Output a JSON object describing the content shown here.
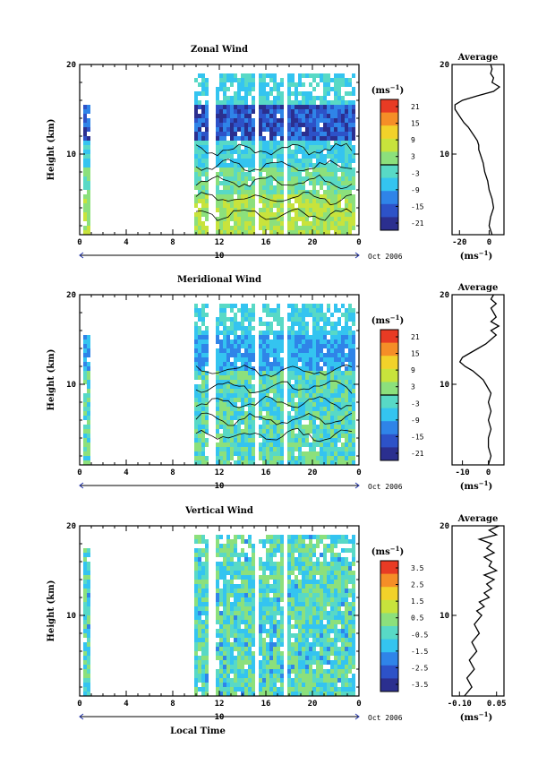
{
  "chart_data": [
    {
      "type": "heatmap",
      "title": "Zonal Wind",
      "ylabel": "Height (km)",
      "xlabel": "",
      "x_ticks": [
        "0",
        "4",
        "8",
        "12",
        "16",
        "20",
        "0"
      ],
      "y_ticks": [
        "10",
        "20"
      ],
      "ylim": [
        1,
        20
      ],
      "date_axis": {
        "mid_label": "10",
        "end_label": "Oct 2006"
      },
      "colorbar": {
        "unit": "(ms",
        "unit_exp": "−1",
        "unit_close": ")",
        "ticks": [
          "21",
          "15",
          "9",
          "3",
          "-3",
          "-9",
          "-15",
          "-21"
        ]
      },
      "profile": {
        "title": "Average",
        "x_ticks": [
          "-20",
          "0"
        ],
        "xlim": [
          -25,
          10
        ],
        "unit": "(ms",
        "unit_exp": "−1",
        "unit_close": ")",
        "y_ticks": [
          "10",
          "20"
        ],
        "heights": [
          1.0,
          2.0,
          3.0,
          4.0,
          5.0,
          6.0,
          7.0,
          8.0,
          9.0,
          10.0,
          10.5,
          11.0,
          11.5,
          12.0,
          12.5,
          13.0,
          13.5,
          14.0,
          14.5,
          15.0,
          15.5,
          16.0,
          16.5,
          17.0,
          17.5,
          18.0,
          18.5,
          19.0,
          19.5,
          20.0
        ],
        "values": [
          2,
          0,
          1,
          3,
          2,
          0,
          -1,
          -3,
          -4,
          -6,
          -7,
          -7,
          -8,
          -10,
          -12,
          -14,
          -17,
          -19,
          -21,
          -23,
          -23,
          -18,
          -8,
          3,
          7,
          2,
          3,
          1,
          2,
          1
        ]
      }
    },
    {
      "type": "heatmap",
      "title": "Meridional Wind",
      "ylabel": "Height (km)",
      "xlabel": "",
      "x_ticks": [
        "0",
        "4",
        "8",
        "12",
        "16",
        "20",
        "0"
      ],
      "y_ticks": [
        "10",
        "20"
      ],
      "ylim": [
        1,
        20
      ],
      "date_axis": {
        "mid_label": "10",
        "end_label": "Oct 2006"
      },
      "colorbar": {
        "unit": "(ms",
        "unit_exp": "−1",
        "unit_close": ")",
        "ticks": [
          "21",
          "15",
          "9",
          "3",
          "-3",
          "-9",
          "-15",
          "-21"
        ]
      },
      "profile": {
        "title": "Average",
        "x_ticks": [
          "-10",
          "0"
        ],
        "xlim": [
          -14,
          6
        ],
        "unit": "(ms",
        "unit_exp": "−1",
        "unit_close": ")",
        "y_ticks": [
          "10",
          "20"
        ],
        "heights": [
          1.0,
          2.0,
          3.0,
          4.0,
          5.0,
          6.0,
          7.0,
          8.0,
          9.0,
          10.0,
          10.5,
          11.0,
          11.5,
          12.0,
          12.5,
          13.0,
          13.5,
          14.0,
          14.5,
          15.0,
          15.5,
          16.0,
          16.5,
          17.0,
          17.5,
          18.0,
          18.5,
          19.0,
          19.5,
          20.0
        ],
        "values": [
          0,
          1,
          0,
          0,
          1,
          0,
          1,
          0,
          1,
          -1,
          -2,
          -4,
          -6,
          -9,
          -11,
          -10,
          -7,
          -4,
          -1,
          1,
          3,
          1,
          4,
          1,
          3,
          2,
          1,
          3,
          1,
          2
        ]
      }
    },
    {
      "type": "heatmap",
      "title": "Vertical Wind",
      "ylabel": "Height (km)",
      "xlabel": "Local Time",
      "x_ticks": [
        "0",
        "4",
        "8",
        "12",
        "16",
        "20",
        "0"
      ],
      "y_ticks": [
        "10",
        "20"
      ],
      "ylim": [
        1,
        20
      ],
      "date_axis": {
        "mid_label": "10",
        "end_label": "Oct 2006"
      },
      "colorbar": {
        "unit": "(ms",
        "unit_exp": "−1",
        "unit_close": ")",
        "ticks": [
          "3.5",
          "2.5",
          "1.5",
          "0.5",
          "-0.5",
          "-1.5",
          "-2.5",
          "-3.5"
        ]
      },
      "profile": {
        "title": "Average",
        "x_ticks": [
          "-0.10",
          "0.05"
        ],
        "xlim": [
          -0.13,
          0.08
        ],
        "unit": "(ms",
        "unit_exp": "−1",
        "unit_close": ")",
        "y_ticks": [
          "10",
          "20"
        ],
        "heights": [
          1.0,
          2.0,
          3.0,
          4.0,
          5.0,
          6.0,
          7.0,
          8.0,
          9.0,
          10.0,
          10.5,
          11.0,
          11.5,
          12.0,
          12.5,
          13.0,
          13.5,
          14.0,
          14.5,
          15.0,
          15.5,
          16.0,
          16.5,
          17.0,
          17.5,
          18.0,
          18.5,
          19.0,
          19.5,
          20.0
        ],
        "values": [
          -0.08,
          -0.05,
          -0.07,
          -0.04,
          -0.06,
          -0.03,
          -0.05,
          -0.02,
          -0.04,
          -0.01,
          -0.03,
          0.0,
          -0.02,
          0.02,
          0.0,
          0.03,
          0.01,
          0.04,
          0.0,
          0.05,
          0.02,
          0.03,
          0.0,
          0.04,
          0.01,
          0.03,
          -0.02,
          0.05,
          0.02,
          0.06
        ]
      }
    }
  ],
  "colors": {
    "colormap": [
      "#2b2f8f",
      "#2d52c8",
      "#2f84e8",
      "#34c4f0",
      "#58d9c6",
      "#8ce07c",
      "#c8e33c",
      "#f2d22a",
      "#f58e27",
      "#e83b24"
    ]
  }
}
